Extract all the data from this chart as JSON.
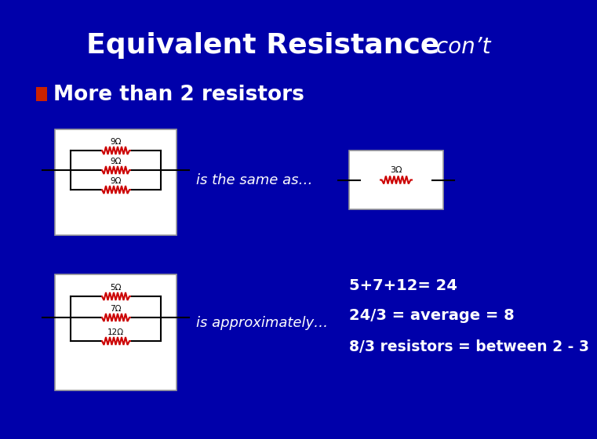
{
  "title_main": "Equivalent Resistance",
  "title_italic": " con’t",
  "bullet_text": "More than 2 resistors",
  "text_same_as": "is the same as…",
  "text_approx": "is approximately…",
  "text_eq1": "5+7+12= 24",
  "text_eq2": "24/3 = average = 8",
  "text_eq3": "8/3 resistors = between 2 - 3",
  "bg_color": "#0000AA",
  "box_color": "#FFFFFF",
  "resistor_color": "#CC0000",
  "line_color": "#000000",
  "text_color": "#FFFFFF",
  "label_color": "#000000",
  "bullet_color": "#CC2200",
  "resistor_labels_top": [
    "9Ω",
    "9Ω",
    "9Ω"
  ],
  "resistor_labels_bot": [
    "5Ω",
    "7Ω",
    "12Ω"
  ],
  "resistor_label_single": "3Ω",
  "title_fontsize": 26,
  "title_italic_fontsize": 20,
  "bullet_fontsize": 19,
  "body_fontsize": 13,
  "eq_fontsize": 14
}
